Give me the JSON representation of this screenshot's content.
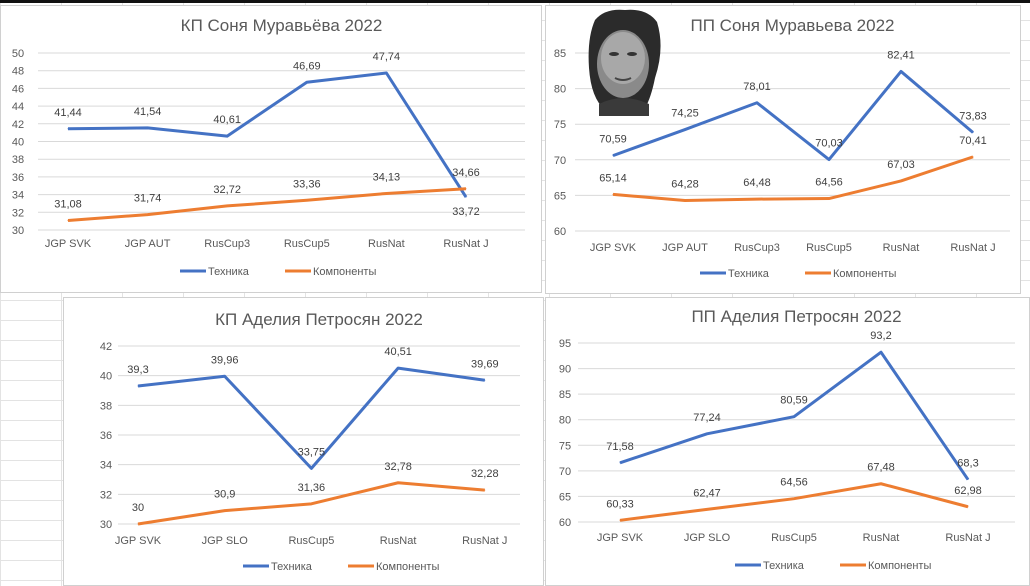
{
  "chart_data": [
    {
      "type": "line",
      "title": "КП Соня Муравьёва 2022",
      "categories": [
        "JGP SVK",
        "JGP AUT",
        "RusCup3",
        "RusCup5",
        "RusNat",
        "RusNat J"
      ],
      "series": [
        {
          "name": "Техника",
          "color": "#4472C4",
          "values": [
            41.44,
            41.54,
            40.61,
            46.69,
            47.74,
            33.72
          ],
          "labels": [
            "41,44",
            "41,54",
            "40,61",
            "46,69",
            "47,74",
            "33,72"
          ]
        },
        {
          "name": "Компоненты",
          "color": "#ED7D31",
          "values": [
            31.08,
            31.74,
            32.72,
            33.36,
            34.13,
            34.66
          ],
          "labels": [
            "31,08",
            "31,74",
            "32,72",
            "33,36",
            "34,13",
            "34,66"
          ]
        }
      ],
      "ylim": [
        30,
        50
      ],
      "yticks": [
        "30",
        "32",
        "34",
        "36",
        "38",
        "40",
        "42",
        "44",
        "46",
        "48",
        "50"
      ],
      "grid": true,
      "legend": "bottom"
    },
    {
      "type": "line",
      "title": "ПП Соня Муравьева 2022",
      "categories": [
        "JGP SVK",
        "JGP AUT",
        "RusCup3",
        "RusCup5",
        "RusNat",
        "RusNat J"
      ],
      "series": [
        {
          "name": "Техника",
          "color": "#4472C4",
          "values": [
            70.59,
            74.25,
            78.01,
            70.03,
            82.41,
            73.83
          ],
          "labels": [
            "70,59",
            "74,25",
            "78,01",
            "70,03",
            "82,41",
            "73,83"
          ]
        },
        {
          "name": "Компоненты",
          "color": "#ED7D31",
          "values": [
            65.14,
            64.28,
            64.48,
            64.56,
            67.03,
            70.41
          ],
          "labels": [
            "65,14",
            "64,28",
            "64,48",
            "64,56",
            "67,03",
            "70,41"
          ]
        }
      ],
      "ylim": [
        60,
        85
      ],
      "yticks": [
        "60",
        "65",
        "70",
        "75",
        "80",
        "85"
      ],
      "grid": true,
      "legend": "bottom"
    },
    {
      "type": "line",
      "title": "КП Аделия Петросян 2022",
      "categories": [
        "JGP SVK",
        "JGP SLO",
        "RusCup5",
        "RusNat",
        "RusNat J"
      ],
      "series": [
        {
          "name": "Техника",
          "color": "#4472C4",
          "values": [
            39.3,
            39.96,
            33.75,
            40.51,
            39.69
          ],
          "labels": [
            "39,3",
            "39,96",
            "33,75",
            "40,51",
            "39,69"
          ]
        },
        {
          "name": "Компоненты",
          "color": "#ED7D31",
          "values": [
            30,
            30.9,
            31.36,
            32.78,
            32.28
          ],
          "labels": [
            "30",
            "30,9",
            "31,36",
            "32,78",
            "32,28"
          ]
        }
      ],
      "ylim": [
        30,
        42
      ],
      "yticks": [
        "30",
        "32",
        "34",
        "36",
        "38",
        "40",
        "42"
      ],
      "grid": true,
      "legend": "bottom"
    },
    {
      "type": "line",
      "title": "ПП Аделия Петросян 2022",
      "categories": [
        "JGP SVK",
        "JGP SLO",
        "RusCup5",
        "RusNat",
        "RusNat J"
      ],
      "series": [
        {
          "name": "Техника",
          "color": "#4472C4",
          "values": [
            71.58,
            77.24,
            80.59,
            93.2,
            68.3
          ],
          "labels": [
            "71,58",
            "77,24",
            "80,59",
            "93,2",
            "68,3"
          ]
        },
        {
          "name": "Компоненты",
          "color": "#ED7D31",
          "values": [
            60.33,
            62.47,
            64.56,
            67.48,
            62.98
          ],
          "labels": [
            "60,33",
            "62,47",
            "64,56",
            "67,48",
            "62,98"
          ]
        }
      ],
      "ylim": [
        60,
        95
      ],
      "yticks": [
        "60",
        "65",
        "70",
        "75",
        "80",
        "85",
        "90",
        "95"
      ],
      "grid": true,
      "legend": "bottom"
    }
  ],
  "photo": {
    "icon": "portrait-photo"
  }
}
